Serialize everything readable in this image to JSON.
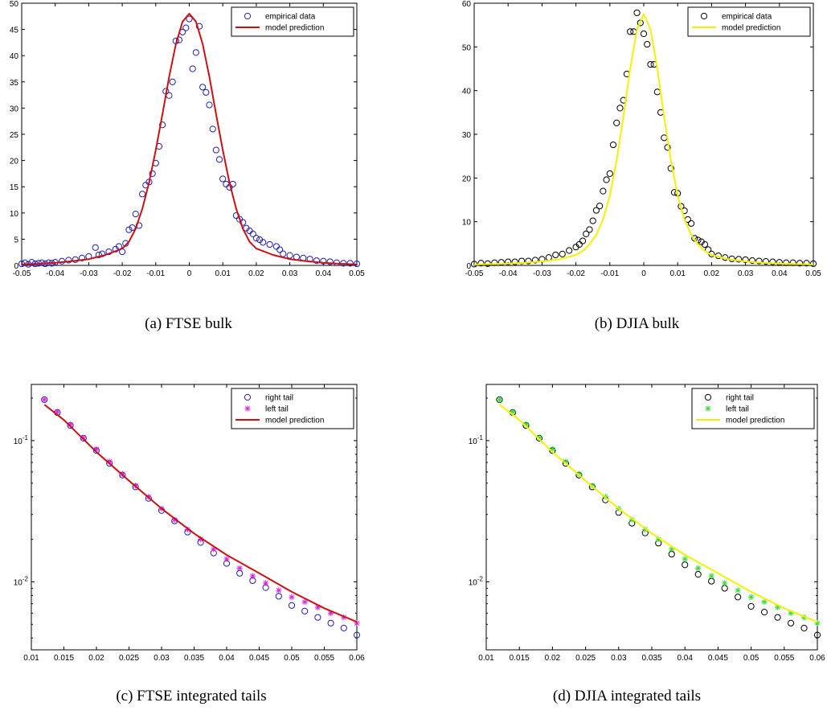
{
  "chart_data": [
    {
      "id": "a",
      "type": "scatter",
      "caption": "(a) FTSE bulk",
      "xlim": [
        -0.05,
        0.05
      ],
      "ylim": [
        0,
        50
      ],
      "yscale": "linear",
      "xticks": [
        -0.05,
        -0.04,
        -0.03,
        -0.02,
        -0.01,
        0,
        0.01,
        0.02,
        0.03,
        0.04,
        0.05
      ],
      "xtick_labels": [
        "-0.05",
        "-0.04",
        "-0.03",
        "-0.02",
        "-0.01",
        "0",
        "0.01",
        "0.02",
        "0.03",
        "0.04",
        "0.05"
      ],
      "yticks": [
        0,
        5,
        10,
        15,
        20,
        25,
        30,
        35,
        40,
        45,
        50
      ],
      "ytick_labels": [
        "0",
        "5",
        "10",
        "15",
        "20",
        "25",
        "30",
        "35",
        "40",
        "45",
        "50"
      ],
      "legend_position": "top-right",
      "series": [
        {
          "name": "empirical data",
          "kind": "circles",
          "color": "#1f1fb4",
          "x": [
            -0.05,
            -0.049,
            -0.048,
            -0.047,
            -0.046,
            -0.045,
            -0.044,
            -0.043,
            -0.042,
            -0.041,
            -0.04,
            -0.038,
            -0.036,
            -0.034,
            -0.032,
            -0.03,
            -0.028,
            -0.027,
            -0.026,
            -0.024,
            -0.022,
            -0.021,
            -0.02,
            -0.019,
            -0.018,
            -0.017,
            -0.016,
            -0.015,
            -0.014,
            -0.013,
            -0.012,
            -0.011,
            -0.01,
            -0.009,
            -0.008,
            -0.007,
            -0.006,
            -0.005,
            -0.004,
            -0.003,
            -0.002,
            -0.001,
            0,
            0.001,
            0.002,
            0.003,
            0.004,
            0.005,
            0.006,
            0.007,
            0.008,
            0.009,
            0.01,
            0.011,
            0.012,
            0.013,
            0.014,
            0.015,
            0.016,
            0.017,
            0.018,
            0.019,
            0.02,
            0.021,
            0.022,
            0.024,
            0.026,
            0.027,
            0.028,
            0.03,
            0.032,
            0.034,
            0.036,
            0.038,
            0.04,
            0.042,
            0.044,
            0.046,
            0.048,
            0.05
          ],
          "y": [
            0.3,
            0.5,
            0.2,
            0.6,
            0.3,
            0.4,
            0.5,
            0.3,
            0.5,
            0.4,
            0.6,
            0.8,
            1.0,
            1.1,
            1.4,
            1.7,
            3.4,
            2.0,
            2.2,
            2.6,
            3.1,
            3.6,
            2.6,
            4.2,
            6.8,
            7.2,
            9.8,
            7.6,
            13.6,
            15.3,
            15.9,
            17.5,
            19.5,
            22.7,
            26.8,
            33.2,
            32.4,
            35.0,
            42.8,
            43.0,
            44.5,
            45.3,
            47.0,
            37.5,
            40.6,
            45.6,
            34.0,
            33.0,
            30.6,
            26.0,
            22.0,
            20.2,
            16.5,
            15.5,
            14.9,
            15.5,
            9.5,
            8.8,
            8.2,
            7.1,
            6.6,
            6.0,
            5.2,
            4.9,
            4.4,
            4.0,
            3.6,
            3.0,
            2.2,
            1.9,
            1.6,
            1.4,
            1.2,
            0.9,
            0.8,
            0.7,
            0.5,
            0.4,
            0.4,
            0.3
          ]
        },
        {
          "name": "model prediction",
          "kind": "line",
          "color": "#cc1111",
          "x": [
            -0.05,
            -0.045,
            -0.04,
            -0.035,
            -0.03,
            -0.025,
            -0.02,
            -0.018,
            -0.016,
            -0.014,
            -0.012,
            -0.01,
            -0.008,
            -0.006,
            -0.004,
            -0.002,
            0,
            0.002,
            0.004,
            0.006,
            0.008,
            0.01,
            0.012,
            0.014,
            0.016,
            0.018,
            0.02,
            0.025,
            0.03,
            0.035,
            0.04,
            0.045,
            0.05
          ],
          "y": [
            0.2,
            0.3,
            0.5,
            0.8,
            1.2,
            2.0,
            3.2,
            4.5,
            7.0,
            10.8,
            15.8,
            22.0,
            28.8,
            36.0,
            42.2,
            46.5,
            48.0,
            46.5,
            42.2,
            36.0,
            28.8,
            22.0,
            15.8,
            10.8,
            7.0,
            4.5,
            3.2,
            2.0,
            1.2,
            0.8,
            0.5,
            0.3,
            0.2
          ]
        }
      ]
    },
    {
      "id": "b",
      "type": "scatter",
      "caption": "(b) DJIA bulk",
      "xlim": [
        -0.05,
        0.05
      ],
      "ylim": [
        0,
        60
      ],
      "yscale": "linear",
      "xticks": [
        -0.05,
        -0.04,
        -0.03,
        -0.02,
        -0.01,
        0,
        0.01,
        0.02,
        0.03,
        0.04,
        0.05
      ],
      "xtick_labels": [
        "-0.05",
        "-0.04",
        "-0.03",
        "-0.02",
        "-0.01",
        "0",
        "0.01",
        "0.02",
        "0.03",
        "0.04",
        "0.05"
      ],
      "yticks": [
        0,
        10,
        20,
        30,
        40,
        50,
        60
      ],
      "ytick_labels": [
        "0",
        "10",
        "20",
        "30",
        "40",
        "50",
        "60"
      ],
      "legend_position": "top-right",
      "series": [
        {
          "name": "empirical data",
          "kind": "circles",
          "color": "#000000",
          "x": [
            -0.05,
            -0.048,
            -0.046,
            -0.044,
            -0.042,
            -0.04,
            -0.038,
            -0.036,
            -0.034,
            -0.032,
            -0.03,
            -0.028,
            -0.026,
            -0.024,
            -0.022,
            -0.02,
            -0.019,
            -0.018,
            -0.017,
            -0.016,
            -0.015,
            -0.014,
            -0.013,
            -0.012,
            -0.011,
            -0.01,
            -0.009,
            -0.008,
            -0.007,
            -0.006,
            -0.005,
            -0.004,
            -0.003,
            -0.002,
            -0.001,
            0,
            0.001,
            0.002,
            0.003,
            0.004,
            0.005,
            0.006,
            0.007,
            0.008,
            0.009,
            0.01,
            0.011,
            0.012,
            0.013,
            0.014,
            0.015,
            0.016,
            0.017,
            0.018,
            0.019,
            0.02,
            0.022,
            0.024,
            0.026,
            0.028,
            0.03,
            0.032,
            0.034,
            0.036,
            0.038,
            0.04,
            0.042,
            0.044,
            0.046,
            0.048,
            0.05
          ],
          "y": [
            0.3,
            0.5,
            0.4,
            0.6,
            0.7,
            0.8,
            0.8,
            1.0,
            1.0,
            1.2,
            1.4,
            1.8,
            2.4,
            2.6,
            3.4,
            4.2,
            4.8,
            5.6,
            7.2,
            8.2,
            10.2,
            12.6,
            13.6,
            17.0,
            19.6,
            21.0,
            27.6,
            32.6,
            36.0,
            37.8,
            43.8,
            53.5,
            53.5,
            57.8,
            55.5,
            53.0,
            50.6,
            46.0,
            46.0,
            39.7,
            35.0,
            29.2,
            27.0,
            22.2,
            16.7,
            16.5,
            13.5,
            12.5,
            10.5,
            9.6,
            6.2,
            5.8,
            5.4,
            4.8,
            3.6,
            2.6,
            2.2,
            1.8,
            1.5,
            1.4,
            1.3,
            1.1,
            1.0,
            0.9,
            0.8,
            0.7,
            0.6,
            0.6,
            0.5,
            0.5,
            0.4
          ]
        },
        {
          "name": "model prediction",
          "kind": "line",
          "color": "#f2f200",
          "x": [
            -0.05,
            -0.045,
            -0.04,
            -0.035,
            -0.03,
            -0.025,
            -0.02,
            -0.018,
            -0.016,
            -0.014,
            -0.012,
            -0.01,
            -0.008,
            -0.006,
            -0.004,
            -0.002,
            0,
            0.002,
            0.004,
            0.006,
            0.008,
            0.01,
            0.012,
            0.014,
            0.016,
            0.018,
            0.02,
            0.025,
            0.03,
            0.035,
            0.04,
            0.045,
            0.05
          ],
          "y": [
            0.2,
            0.3,
            0.4,
            0.6,
            0.9,
            1.4,
            2.4,
            3.3,
            4.8,
            7.0,
            10.5,
            16.0,
            24.0,
            34.0,
            45.0,
            54.0,
            57.5,
            54.0,
            45.0,
            34.0,
            24.0,
            16.0,
            10.5,
            7.0,
            4.8,
            3.3,
            2.4,
            1.4,
            0.9,
            0.6,
            0.4,
            0.3,
            0.2
          ]
        }
      ]
    },
    {
      "id": "c",
      "type": "scatter",
      "caption": "(c) FTSE integrated tails",
      "xlim": [
        0.01,
        0.06
      ],
      "ylim": [
        0.0033,
        0.25
      ],
      "yscale": "log",
      "xticks": [
        0.01,
        0.015,
        0.02,
        0.025,
        0.03,
        0.035,
        0.04,
        0.045,
        0.05,
        0.055,
        0.06
      ],
      "xtick_labels": [
        "0.01",
        "0.015",
        "0.02",
        "0.025",
        "0.03",
        "0.035",
        "0.04",
        "0.045",
        "0.05",
        "0.055",
        "0.06"
      ],
      "yticks": [
        0.1,
        0.01
      ],
      "ytick_labels": [
        "10-1",
        "10-2"
      ],
      "legend_position": "top-right",
      "series": [
        {
          "name": "right tail",
          "kind": "circles",
          "color": "#1f1fb4",
          "x": [
            0.012,
            0.014,
            0.016,
            0.018,
            0.02,
            0.022,
            0.024,
            0.026,
            0.028,
            0.03,
            0.032,
            0.034,
            0.036,
            0.038,
            0.04,
            0.042,
            0.044,
            0.046,
            0.048,
            0.05,
            0.052,
            0.054,
            0.056,
            0.058,
            0.06
          ],
          "y": [
            0.195,
            0.158,
            0.128,
            0.104,
            0.085,
            0.069,
            0.057,
            0.047,
            0.039,
            0.032,
            0.027,
            0.0225,
            0.019,
            0.016,
            0.0135,
            0.0115,
            0.0102,
            0.0091,
            0.0079,
            0.0068,
            0.0062,
            0.0056,
            0.0051,
            0.0047,
            0.0042
          ]
        },
        {
          "name": "left tail",
          "kind": "stars",
          "color": "#e020e0",
          "x": [
            0.012,
            0.014,
            0.016,
            0.018,
            0.02,
            0.022,
            0.024,
            0.026,
            0.028,
            0.03,
            0.032,
            0.034,
            0.036,
            0.038,
            0.04,
            0.042,
            0.044,
            0.046,
            0.048,
            0.05,
            0.052,
            0.054,
            0.056,
            0.058,
            0.06
          ],
          "y": [
            0.195,
            0.16,
            0.13,
            0.105,
            0.087,
            0.071,
            0.058,
            0.048,
            0.04,
            0.033,
            0.0275,
            0.0235,
            0.02,
            0.017,
            0.0145,
            0.0125,
            0.011,
            0.0098,
            0.0087,
            0.0078,
            0.0072,
            0.0066,
            0.006,
            0.0056,
            0.0051
          ]
        },
        {
          "name": "model prediction",
          "kind": "line",
          "color": "#cc1111",
          "x": [
            0.012,
            0.015,
            0.02,
            0.025,
            0.03,
            0.035,
            0.04,
            0.045,
            0.05,
            0.055,
            0.06
          ],
          "y": [
            0.18,
            0.14,
            0.083,
            0.052,
            0.033,
            0.022,
            0.0155,
            0.0115,
            0.0085,
            0.0065,
            0.0052
          ]
        }
      ]
    },
    {
      "id": "d",
      "type": "scatter",
      "caption": "(d) DJIA integrated tails",
      "xlim": [
        0.01,
        0.06
      ],
      "ylim": [
        0.0033,
        0.25
      ],
      "yscale": "log",
      "xticks": [
        0.01,
        0.015,
        0.02,
        0.025,
        0.03,
        0.035,
        0.04,
        0.045,
        0.05,
        0.055,
        0.06
      ],
      "xtick_labels": [
        "0.01",
        "0.015",
        "0.02",
        "0.025",
        "0.03",
        "0.035",
        "0.04",
        "0.045",
        "0.05",
        "0.055",
        "0.06"
      ],
      "yticks": [
        0.1,
        0.01
      ],
      "ytick_labels": [
        "10-1",
        "10-2"
      ],
      "legend_position": "top-right",
      "series": [
        {
          "name": "right tail",
          "kind": "circles",
          "color": "#000000",
          "x": [
            0.012,
            0.014,
            0.016,
            0.018,
            0.02,
            0.022,
            0.024,
            0.026,
            0.028,
            0.03,
            0.032,
            0.034,
            0.036,
            0.038,
            0.04,
            0.042,
            0.044,
            0.046,
            0.048,
            0.05,
            0.052,
            0.054,
            0.056,
            0.058,
            0.06
          ],
          "y": [
            0.195,
            0.158,
            0.128,
            0.104,
            0.085,
            0.069,
            0.057,
            0.047,
            0.038,
            0.031,
            0.026,
            0.0222,
            0.0188,
            0.0157,
            0.0132,
            0.0113,
            0.0101,
            0.009,
            0.0078,
            0.0067,
            0.0061,
            0.0056,
            0.0051,
            0.0047,
            0.0042
          ]
        },
        {
          "name": "left tail",
          "kind": "stars",
          "color": "#33dd33",
          "x": [
            0.012,
            0.014,
            0.016,
            0.018,
            0.02,
            0.022,
            0.024,
            0.026,
            0.028,
            0.03,
            0.032,
            0.034,
            0.036,
            0.038,
            0.04,
            0.042,
            0.044,
            0.046,
            0.048,
            0.05,
            0.052,
            0.054,
            0.056,
            0.058,
            0.06
          ],
          "y": [
            0.195,
            0.16,
            0.13,
            0.105,
            0.087,
            0.071,
            0.058,
            0.048,
            0.04,
            0.033,
            0.0275,
            0.0235,
            0.02,
            0.017,
            0.0145,
            0.0125,
            0.011,
            0.0098,
            0.0087,
            0.0078,
            0.0072,
            0.0066,
            0.006,
            0.0056,
            0.0051
          ]
        },
        {
          "name": "model prediction",
          "kind": "line",
          "color": "#f2f200",
          "x": [
            0.012,
            0.015,
            0.02,
            0.025,
            0.03,
            0.035,
            0.04,
            0.045,
            0.05,
            0.055,
            0.06
          ],
          "y": [
            0.18,
            0.14,
            0.083,
            0.052,
            0.033,
            0.022,
            0.0155,
            0.0115,
            0.0085,
            0.0065,
            0.0052
          ]
        }
      ]
    }
  ]
}
